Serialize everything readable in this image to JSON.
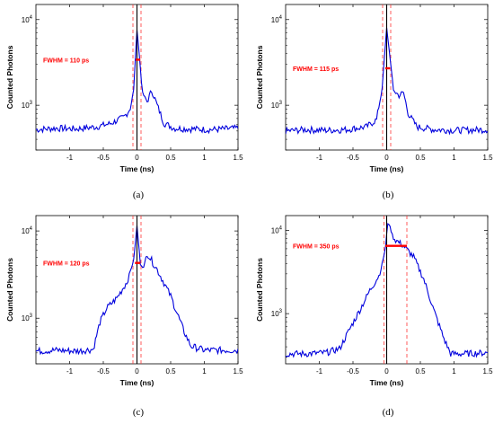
{
  "colors": {
    "curve": "#0000dd",
    "dashed": "#ff3333",
    "center": "#000000",
    "fwhm_bar": "#ff0000"
  },
  "chart_data": [
    {
      "type": "line",
      "caption": "(a)",
      "annotation": "FWHM = 110 ps",
      "xlabel": "Time (ns)",
      "ylabel": "Counted Photons",
      "xlim": [
        -1.5,
        1.5
      ],
      "ylim": [
        300,
        15000
      ],
      "yscale": "log",
      "xticks": [
        "-1",
        "-0.5",
        "0",
        "0.5",
        "1",
        "1.5"
      ],
      "yticks": [
        "10^3",
        "10^4"
      ],
      "vlines": {
        "solid": 0,
        "dashed": [
          -0.06,
          0.06
        ]
      },
      "fwhm_bar": {
        "x1": -0.02,
        "x2": 0.05,
        "y": 3400
      },
      "series": [
        {
          "x": [
            -1.5,
            -1.2,
            -0.9,
            -0.6,
            -0.4,
            -0.2,
            -0.1,
            -0.05,
            0,
            0.03,
            0.08,
            0.15,
            0.22,
            0.3,
            0.4,
            0.55,
            0.8,
            1.1,
            1.5
          ],
          "y": [
            520,
            540,
            530,
            560,
            610,
            720,
            900,
            1500,
            7800,
            4200,
            1400,
            1100,
            1500,
            1000,
            620,
            540,
            530,
            520,
            540
          ]
        }
      ]
    },
    {
      "type": "line",
      "caption": "(b)",
      "annotation": "FWHM = 115 ps",
      "xlabel": "Time (ns)",
      "ylabel": "Counted Photons",
      "xlim": [
        -1.5,
        1.5
      ],
      "ylim": [
        300,
        15000
      ],
      "yscale": "log",
      "xticks": [
        "-1",
        "-0.5",
        "0",
        "0.5",
        "1",
        "1.5"
      ],
      "yticks": [
        "10^3",
        "10^4"
      ],
      "vlines": {
        "solid": 0,
        "dashed": [
          -0.06,
          0.06
        ]
      },
      "fwhm_bar": {
        "x1": -0.02,
        "x2": 0.05,
        "y": 2700
      },
      "series": [
        {
          "x": [
            -1.5,
            -1.2,
            -0.9,
            -0.6,
            -0.3,
            -0.15,
            -0.07,
            0,
            0.05,
            0.1,
            0.18,
            0.25,
            0.32,
            0.45,
            0.7,
            1.0,
            1.5
          ],
          "y": [
            500,
            520,
            510,
            520,
            560,
            680,
            1500,
            8000,
            3600,
            1500,
            1300,
            1400,
            800,
            560,
            520,
            510,
            520
          ]
        }
      ]
    },
    {
      "type": "line",
      "caption": "(c)",
      "annotation": "FWHM = 120 ps",
      "xlabel": "Time (ns)",
      "ylabel": "Counted Photons",
      "xlim": [
        -1.5,
        1.5
      ],
      "ylim": [
        300,
        15000
      ],
      "yscale": "log",
      "xticks": [
        "-1",
        "-0.5",
        "0",
        "0.5",
        "1",
        "1.5"
      ],
      "yticks": [
        "10^3",
        "10^4"
      ],
      "vlines": {
        "solid": 0,
        "dashed": [
          -0.06,
          0.06
        ]
      },
      "fwhm_bar": {
        "x1": -0.03,
        "x2": 0.05,
        "y": 4300
      },
      "series": [
        {
          "x": [
            -1.5,
            -1.2,
            -0.9,
            -0.65,
            -0.55,
            -0.45,
            -0.3,
            -0.15,
            -0.05,
            0,
            0.05,
            0.1,
            0.15,
            0.3,
            0.5,
            0.7,
            0.8,
            1.0,
            1.5
          ],
          "y": [
            420,
            430,
            420,
            440,
            900,
            1300,
            1700,
            2600,
            4600,
            11500,
            4200,
            3800,
            5600,
            3600,
            1800,
            700,
            480,
            430,
            430
          ]
        }
      ]
    },
    {
      "type": "line",
      "caption": "(d)",
      "annotation": "FWHM = 350 ps",
      "xlabel": "Time (ns)",
      "ylabel": "Counted Photons",
      "xlim": [
        -1.5,
        1.5
      ],
      "ylim": [
        250,
        15000
      ],
      "yscale": "log",
      "xticks": [
        "-1",
        "-0.5",
        "0",
        "0.5",
        "1",
        "1.5"
      ],
      "yticks": [
        "10^3",
        "10^4"
      ],
      "vlines": {
        "solid": 0,
        "dashed": [
          -0.04,
          0.3
        ]
      },
      "fwhm_bar": {
        "x1": -0.02,
        "x2": 0.3,
        "y": 6500
      },
      "series": [
        {
          "x": [
            -1.5,
            -1.2,
            -0.9,
            -0.7,
            -0.55,
            -0.4,
            -0.25,
            -0.1,
            -0.02,
            0.02,
            0.1,
            0.25,
            0.4,
            0.55,
            0.7,
            0.85,
            0.95,
            1.1,
            1.5
          ],
          "y": [
            330,
            330,
            340,
            380,
            650,
            1100,
            1900,
            3000,
            6000,
            13000,
            8000,
            6500,
            4800,
            2600,
            1100,
            500,
            330,
            330,
            340
          ]
        }
      ]
    }
  ]
}
